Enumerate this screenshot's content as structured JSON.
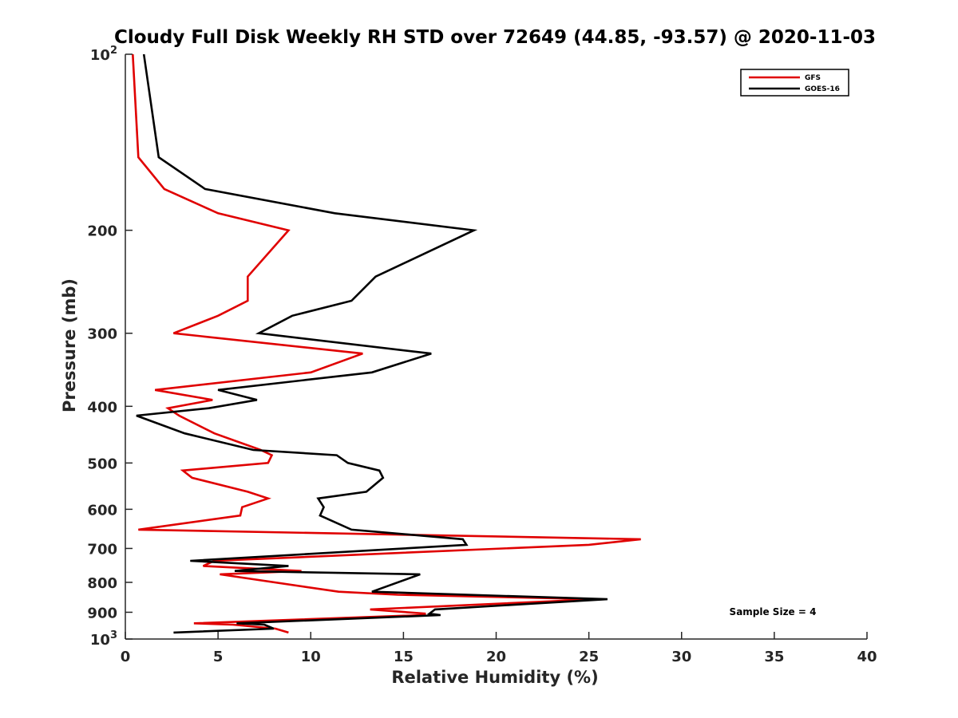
{
  "chart_data": {
    "type": "line",
    "title": "Cloudy Full Disk Weekly RH STD over 72649 (44.85, -93.57) @ 2020-11-03",
    "xlabel": "Relative Humidity (%)",
    "ylabel": "Pressure (mb)",
    "xlim": [
      0,
      40
    ],
    "ylim": [
      100,
      1000
    ],
    "y_scale": "log",
    "y_reversed": true,
    "grid": false,
    "legend_position": "top-right",
    "x_ticks": [
      "0",
      "5",
      "10",
      "15",
      "20",
      "25",
      "30",
      "35",
      "40"
    ],
    "y_ticks": [
      {
        "value": 100,
        "label": "10",
        "sup": "2"
      },
      {
        "value": 200,
        "label": "200",
        "sup": ""
      },
      {
        "value": 300,
        "label": "300",
        "sup": ""
      },
      {
        "value": 400,
        "label": "400",
        "sup": ""
      },
      {
        "value": 500,
        "label": "500",
        "sup": ""
      },
      {
        "value": 600,
        "label": "600",
        "sup": ""
      },
      {
        "value": 700,
        "label": "700",
        "sup": ""
      },
      {
        "value": 800,
        "label": "800",
        "sup": ""
      },
      {
        "value": 900,
        "label": "900",
        "sup": ""
      },
      {
        "value": 1000,
        "label": "10",
        "sup": "3"
      }
    ],
    "annotation": "Sample Size = 4",
    "series": [
      {
        "name": "GFS",
        "color": "#e00000",
        "points": [
          [
            0.4,
            100
          ],
          [
            0.7,
            150
          ],
          [
            2.1,
            170
          ],
          [
            5.0,
            187
          ],
          [
            8.8,
            200
          ],
          [
            6.6,
            240
          ],
          [
            6.6,
            264
          ],
          [
            5.0,
            280
          ],
          [
            2.6,
            300
          ],
          [
            12.8,
            325
          ],
          [
            10.0,
            350
          ],
          [
            1.6,
            375
          ],
          [
            4.7,
            390
          ],
          [
            2.3,
            403
          ],
          [
            2.9,
            415
          ],
          [
            4.8,
            445
          ],
          [
            7.3,
            475
          ],
          [
            7.9,
            485
          ],
          [
            7.7,
            500
          ],
          [
            3.1,
            515
          ],
          [
            3.6,
            530
          ],
          [
            6.6,
            560
          ],
          [
            7.7,
            575
          ],
          [
            6.3,
            595
          ],
          [
            6.2,
            615
          ],
          [
            0.7,
            650
          ],
          [
            27.8,
            675
          ],
          [
            25.0,
            690
          ],
          [
            4.8,
            735
          ],
          [
            4.2,
            750
          ],
          [
            9.5,
            765
          ],
          [
            5.1,
            775
          ],
          [
            11.5,
            830
          ],
          [
            14.7,
            840
          ],
          [
            25.5,
            855
          ],
          [
            13.2,
            890
          ],
          [
            16.2,
            905
          ],
          [
            16.0,
            910
          ],
          [
            3.7,
            940
          ],
          [
            5.8,
            945
          ],
          [
            8.1,
            960
          ],
          [
            8.8,
            975
          ]
        ]
      },
      {
        "name": "GOES-16",
        "color": "#000000",
        "points": [
          [
            1.0,
            100
          ],
          [
            1.8,
            150
          ],
          [
            4.3,
            170
          ],
          [
            11.3,
            187
          ],
          [
            18.8,
            200
          ],
          [
            13.5,
            240
          ],
          [
            12.2,
            264
          ],
          [
            9.0,
            280
          ],
          [
            7.2,
            300
          ],
          [
            16.5,
            325
          ],
          [
            13.3,
            350
          ],
          [
            5.0,
            375
          ],
          [
            7.1,
            390
          ],
          [
            4.5,
            403
          ],
          [
            0.6,
            415
          ],
          [
            3.2,
            445
          ],
          [
            6.9,
            475
          ],
          [
            11.4,
            485
          ],
          [
            12.0,
            500
          ],
          [
            13.7,
            515
          ],
          [
            13.9,
            530
          ],
          [
            13.0,
            560
          ],
          [
            10.4,
            575
          ],
          [
            10.7,
            595
          ],
          [
            10.5,
            615
          ],
          [
            12.2,
            650
          ],
          [
            18.2,
            675
          ],
          [
            18.4,
            690
          ],
          [
            3.5,
            735
          ],
          [
            8.8,
            750
          ],
          [
            5.9,
            765
          ],
          [
            15.9,
            775
          ],
          [
            13.3,
            830
          ],
          [
            26.0,
            855
          ],
          [
            16.7,
            890
          ],
          [
            16.4,
            905
          ],
          [
            17.0,
            910
          ],
          [
            6.0,
            940
          ],
          [
            7.5,
            945
          ],
          [
            8.0,
            960
          ],
          [
            2.6,
            975
          ]
        ]
      }
    ]
  }
}
